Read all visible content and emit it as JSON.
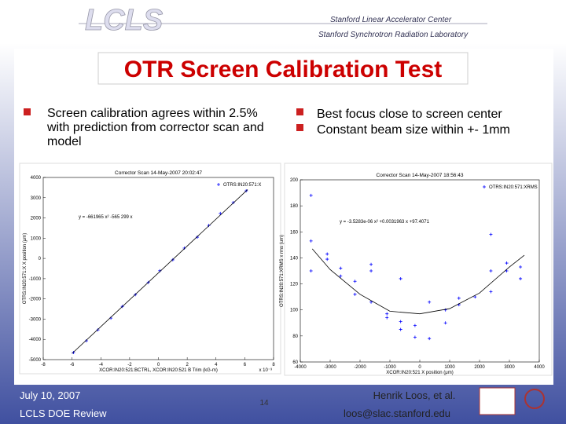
{
  "header": {
    "logo": "LCLS",
    "lab1": "Stanford Linear Accelerator Center",
    "lab2": "Stanford Synchrotron Radiation Laboratory"
  },
  "title": "OTR Screen Calibration Test",
  "bullets_left": [
    "Screen calibration agrees within 2.5% with prediction from corrector scan and model"
  ],
  "bullets_right": [
    "Best focus close to screen center",
    "Constant beam size within +- 1mm"
  ],
  "footer": {
    "date": "July 10, 2007",
    "event": "LCLS DOE Review",
    "page": "14",
    "author": "Henrik Loos, et al.",
    "email": "loos@slac.stanford.edu"
  },
  "chart_data": [
    {
      "type": "scatter",
      "title": "Corrector Scan 14-May-2007 20:02:47",
      "annotation": "y = -661965 x² -565 299 x",
      "x_label": "XCOR:IN20:521:BCTRL, XCOR:IN20:521 B Trim (kG-m)",
      "x_multiplier": "x 10⁻³",
      "y_label": "OTRS:IN20:571:X X position (μm)",
      "xlim": [
        -8,
        8
      ],
      "xticks": [
        -8,
        -6,
        -4,
        -2,
        0,
        2,
        4,
        6,
        8
      ],
      "ylim": [
        -5000,
        4000
      ],
      "yticks": [
        -5000,
        -4000,
        -3000,
        -2000,
        -1000,
        0,
        1000,
        2000,
        3000,
        4000
      ],
      "legend": "upper right",
      "series": [
        {
          "name": "OTRS:IN20:571:X",
          "color": "#0000ff",
          "marker": "+",
          "x": [
            -5.9,
            -5.0,
            -4.2,
            -3.3,
            -2.5,
            -1.6,
            -0.7,
            0.1,
            1.0,
            1.8,
            2.7,
            3.5,
            4.3,
            5.2,
            6.1
          ],
          "values": [
            -4650,
            -4070,
            -3530,
            -2950,
            -2370,
            -1790,
            -1190,
            -610,
            -70,
            510,
            1050,
            1630,
            2220,
            2760,
            3340
          ]
        },
        {
          "color": "#000000",
          "marker": "line",
          "x": [
            -6,
            6.2
          ],
          "values": [
            -4700,
            3400
          ]
        }
      ]
    },
    {
      "type": "scatter",
      "title": "Corrector Scan 14-May-2007 18:56:43",
      "annotation": "y = -3.5283e-06 x² +0.0031963 x +97.4071",
      "x_label": "XCOR:IN20:521 X position (μm)",
      "y_label": "OTRS:IN20:571:XRMS x rms (um)",
      "xlim": [
        -4000,
        4000
      ],
      "xticks": [
        -4000,
        -3000,
        -2000,
        -1000,
        0,
        1000,
        2000,
        3000,
        4000
      ],
      "ylim": [
        60,
        200
      ],
      "yticks": [
        60,
        80,
        100,
        120,
        140,
        160,
        180,
        200
      ],
      "legend": "upper right",
      "series": [
        {
          "name": "OTRS:IN20:571:XRMS",
          "color": "#0000ff",
          "marker": "+",
          "x": [
            -3640,
            -3640,
            -3640,
            -3100,
            -3100,
            -2650,
            -2650,
            -2170,
            -2170,
            -1630,
            -1630,
            -1630,
            -1100,
            -1100,
            -640,
            -640,
            -640,
            -160,
            -160,
            320,
            320,
            860,
            860,
            1310,
            1310,
            1850,
            2380,
            2380,
            2380,
            2910,
            2910,
            3370,
            3370
          ],
          "values": [
            188,
            153,
            130,
            143,
            139,
            132,
            126,
            122,
            112,
            135,
            130,
            106,
            97,
            94,
            91,
            85,
            124,
            88,
            79,
            106,
            78,
            100,
            90,
            109,
            104,
            110,
            158,
            130,
            114,
            136,
            130,
            133,
            124
          ]
        },
        {
          "color": "#000000",
          "marker": "line",
          "x": [
            -3600,
            -3000,
            -2000,
            -1000,
            0,
            1000,
            2000,
            3000,
            3500
          ],
          "values": [
            147,
            131,
            112,
            99,
            97,
            101,
            113,
            133,
            142
          ]
        }
      ]
    }
  ]
}
